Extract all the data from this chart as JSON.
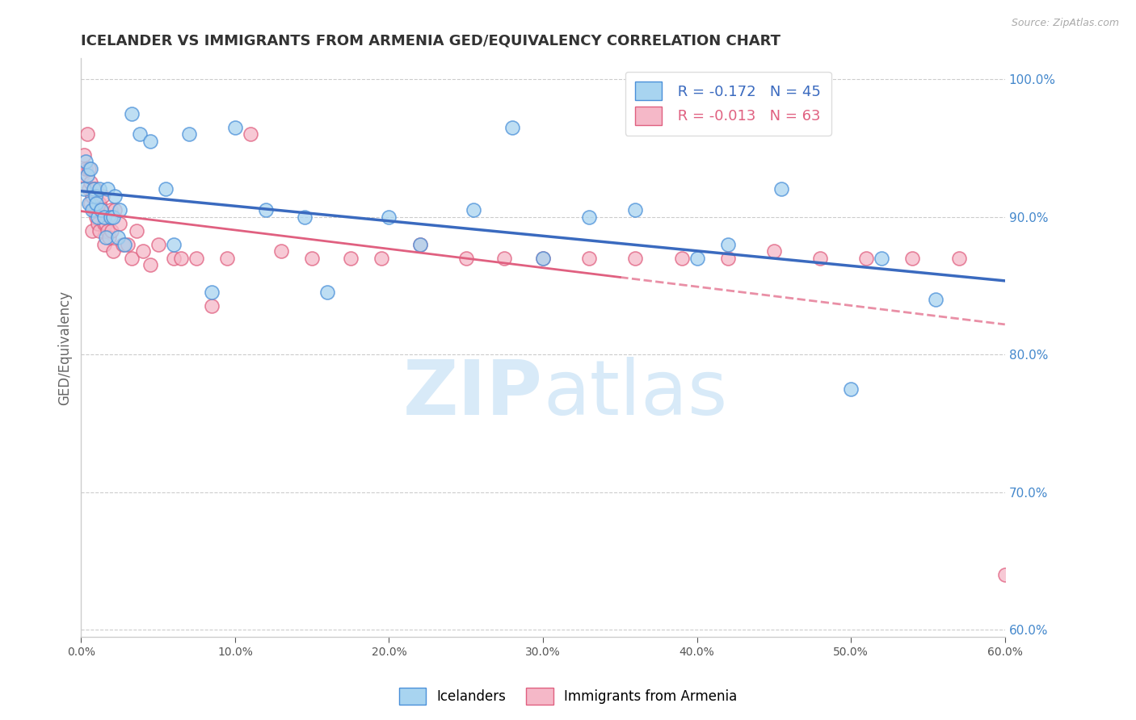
{
  "title": "ICELANDER VS IMMIGRANTS FROM ARMENIA GED/EQUIVALENCY CORRELATION CHART",
  "source": "Source: ZipAtlas.com",
  "ylabel": "GED/Equivalency",
  "x_min": 0.0,
  "x_max": 0.6,
  "y_min": 0.595,
  "y_max": 1.015,
  "x_ticks": [
    0.0,
    0.1,
    0.2,
    0.3,
    0.4,
    0.5,
    0.6
  ],
  "x_tick_labels": [
    "0.0%",
    "",
    "",
    "",
    "",
    "",
    "60.0%"
  ],
  "y_ticks_right": [
    1.0,
    0.9,
    0.8,
    0.7,
    0.6
  ],
  "y_tick_labels_right": [
    "100.0%",
    "90.0%",
    "80.0%",
    "70.0%",
    "60.0%"
  ],
  "legend_label1": "Icelanders",
  "legend_label2": "Immigrants from Armenia",
  "R1": -0.172,
  "N1": 45,
  "R2": -0.013,
  "N2": 63,
  "color_blue": "#a8d4f0",
  "color_blue_edge": "#4a90d9",
  "color_blue_line": "#3a6abf",
  "color_pink": "#f5b8c8",
  "color_pink_edge": "#e06080",
  "color_pink_line": "#e06080",
  "watermark_zip": "ZIP",
  "watermark_atlas": "atlas",
  "background_color": "#ffffff",
  "grid_color": "#cccccc",
  "blue_x": [
    0.002,
    0.003,
    0.004,
    0.005,
    0.006,
    0.007,
    0.008,
    0.009,
    0.01,
    0.011,
    0.012,
    0.013,
    0.015,
    0.016,
    0.017,
    0.019,
    0.021,
    0.022,
    0.024,
    0.025,
    0.028,
    0.033,
    0.038,
    0.045,
    0.055,
    0.06,
    0.07,
    0.085,
    0.1,
    0.12,
    0.145,
    0.16,
    0.2,
    0.22,
    0.255,
    0.28,
    0.3,
    0.33,
    0.36,
    0.4,
    0.42,
    0.455,
    0.5,
    0.52,
    0.555
  ],
  "blue_y": [
    0.92,
    0.94,
    0.93,
    0.91,
    0.935,
    0.905,
    0.92,
    0.915,
    0.91,
    0.9,
    0.92,
    0.905,
    0.9,
    0.885,
    0.92,
    0.9,
    0.9,
    0.915,
    0.885,
    0.905,
    0.88,
    0.975,
    0.96,
    0.955,
    0.92,
    0.88,
    0.96,
    0.845,
    0.965,
    0.905,
    0.9,
    0.845,
    0.9,
    0.88,
    0.905,
    0.965,
    0.87,
    0.9,
    0.905,
    0.87,
    0.88,
    0.92,
    0.775,
    0.87,
    0.84
  ],
  "pink_x": [
    0.001,
    0.002,
    0.003,
    0.004,
    0.005,
    0.005,
    0.006,
    0.006,
    0.007,
    0.007,
    0.008,
    0.008,
    0.009,
    0.009,
    0.01,
    0.01,
    0.011,
    0.011,
    0.012,
    0.012,
    0.013,
    0.014,
    0.015,
    0.015,
    0.016,
    0.017,
    0.018,
    0.019,
    0.02,
    0.021,
    0.022,
    0.025,
    0.027,
    0.03,
    0.033,
    0.036,
    0.04,
    0.045,
    0.05,
    0.06,
    0.065,
    0.075,
    0.085,
    0.095,
    0.11,
    0.13,
    0.15,
    0.175,
    0.195,
    0.22,
    0.25,
    0.275,
    0.3,
    0.33,
    0.36,
    0.39,
    0.42,
    0.45,
    0.48,
    0.51,
    0.54,
    0.57,
    0.6
  ],
  "pink_y": [
    0.93,
    0.945,
    0.935,
    0.96,
    0.92,
    0.935,
    0.925,
    0.91,
    0.915,
    0.89,
    0.905,
    0.92,
    0.905,
    0.92,
    0.9,
    0.915,
    0.895,
    0.91,
    0.91,
    0.89,
    0.905,
    0.915,
    0.895,
    0.88,
    0.895,
    0.89,
    0.885,
    0.905,
    0.89,
    0.875,
    0.905,
    0.895,
    0.88,
    0.88,
    0.87,
    0.89,
    0.875,
    0.865,
    0.88,
    0.87,
    0.87,
    0.87,
    0.835,
    0.87,
    0.96,
    0.875,
    0.87,
    0.87,
    0.87,
    0.88,
    0.87,
    0.87,
    0.87,
    0.87,
    0.87,
    0.87,
    0.87,
    0.875,
    0.87,
    0.87,
    0.87,
    0.87,
    0.64
  ]
}
